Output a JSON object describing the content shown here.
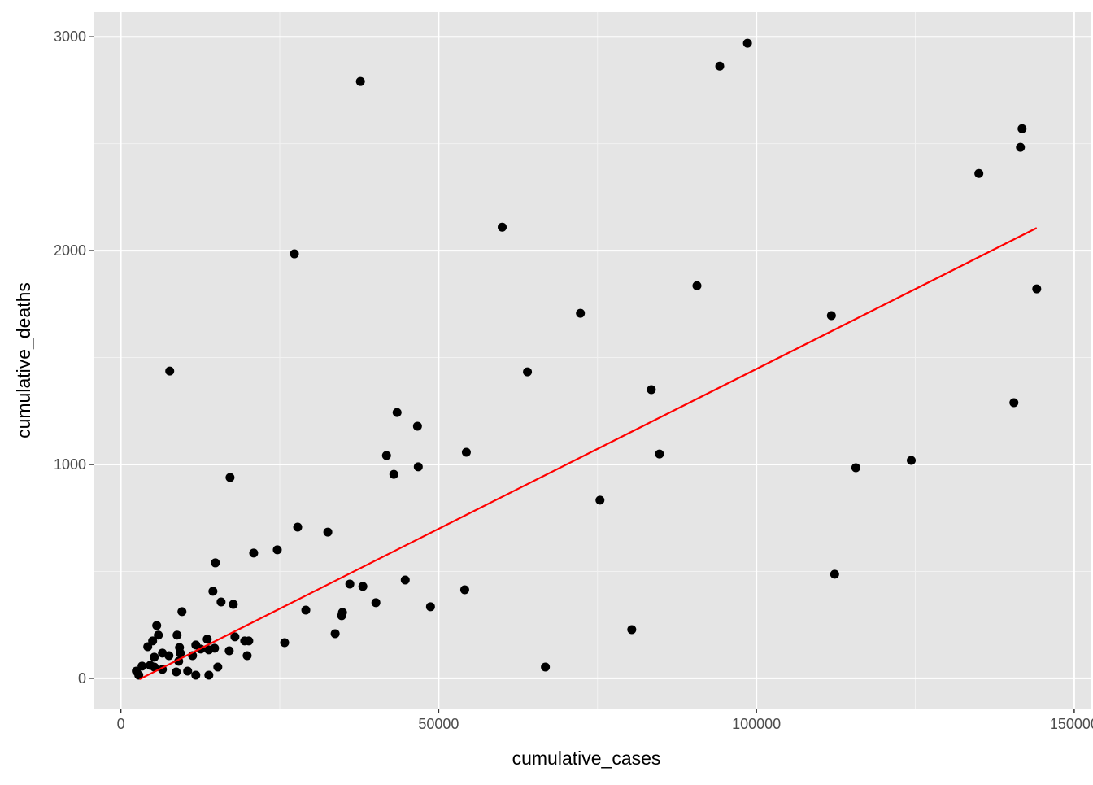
{
  "chart_data": {
    "type": "scatter",
    "title": "",
    "xlabel": "cumulative_cases",
    "ylabel": "cumulative_deaths",
    "xlim": [
      -4300,
      152700
    ],
    "ylim": [
      -145,
      3115
    ],
    "xticks": [
      0,
      50000,
      100000,
      150000
    ],
    "xtick_labels": [
      "0",
      "50000",
      "100000",
      "150000"
    ],
    "yticks": [
      0,
      1000,
      2000,
      3000
    ],
    "ytick_labels": [
      "0",
      "1000",
      "2000",
      "3000"
    ],
    "grid": true,
    "point_color": "#000000",
    "panel_background": "#e5e5e5",
    "fit_line": {
      "type": "linear",
      "color": "#ff0000",
      "x": [
        2950,
        144100
      ],
      "y": [
        -4,
        2106
      ]
    },
    "points": [
      [
        37692,
        2791
      ],
      [
        98590,
        2970
      ],
      [
        94231,
        2863
      ],
      [
        141795,
        2570
      ],
      [
        141538,
        2483
      ],
      [
        135000,
        2361
      ],
      [
        60000,
        2110
      ],
      [
        27308,
        1985
      ],
      [
        144103,
        1821
      ],
      [
        90641,
        1836
      ],
      [
        72308,
        1707
      ],
      [
        111795,
        1696
      ],
      [
        7692,
        1437
      ],
      [
        63974,
        1433
      ],
      [
        83462,
        1350
      ],
      [
        140513,
        1289
      ],
      [
        43462,
        1243
      ],
      [
        46667,
        1179
      ],
      [
        54359,
        1057
      ],
      [
        41795,
        1042
      ],
      [
        84744,
        1049
      ],
      [
        124359,
        1019
      ],
      [
        46795,
        989
      ],
      [
        115641,
        985
      ],
      [
        42949,
        954
      ],
      [
        17179,
        939
      ],
      [
        75385,
        833
      ],
      [
        27821,
        707
      ],
      [
        32564,
        684
      ],
      [
        24615,
        601
      ],
      [
        20897,
        586
      ],
      [
        14872,
        540
      ],
      [
        112308,
        487
      ],
      [
        44744,
        460
      ],
      [
        36026,
        441
      ],
      [
        38077,
        430
      ],
      [
        54103,
        414
      ],
      [
        14487,
        407
      ],
      [
        15769,
        357
      ],
      [
        40128,
        354
      ],
      [
        17692,
        346
      ],
      [
        48718,
        335
      ],
      [
        29103,
        319
      ],
      [
        9615,
        312
      ],
      [
        34872,
        308
      ],
      [
        34744,
        293
      ],
      [
        33718,
        209
      ],
      [
        80385,
        228
      ],
      [
        25769,
        167
      ],
      [
        66795,
        53
      ],
      [
        5641,
        247
      ],
      [
        5897,
        202
      ],
      [
        4231,
        148
      ],
      [
        5000,
        175
      ],
      [
        8846,
        202
      ],
      [
        9231,
        144
      ],
      [
        17949,
        194
      ],
      [
        13590,
        183
      ],
      [
        19487,
        175
      ],
      [
        20128,
        175
      ],
      [
        11795,
        156
      ],
      [
        9359,
        118
      ],
      [
        6538,
        118
      ],
      [
        5256,
        99
      ],
      [
        7564,
        106
      ],
      [
        11282,
        106
      ],
      [
        12564,
        137
      ],
      [
        14744,
        141
      ],
      [
        13846,
        133
      ],
      [
        17051,
        129
      ],
      [
        19872,
        106
      ],
      [
        9103,
        80
      ],
      [
        5256,
        53
      ],
      [
        3333,
        57
      ],
      [
        2436,
        34
      ],
      [
        2821,
        15
      ],
      [
        6538,
        42
      ],
      [
        8718,
        30
      ],
      [
        10513,
        34
      ],
      [
        11795,
        15
      ],
      [
        13846,
        15
      ],
      [
        15256,
        53
      ],
      [
        4615,
        61
      ]
    ]
  }
}
